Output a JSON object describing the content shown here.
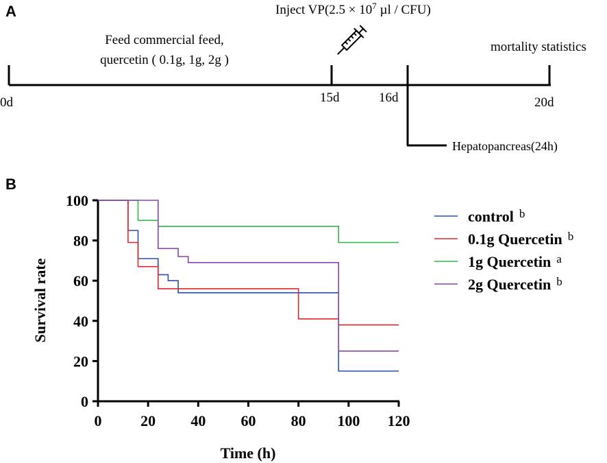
{
  "panel_a": {
    "label": "A",
    "inject_prefix": "Inject VP(2.5 × 10",
    "inject_exponent": "7",
    "inject_suffix": " µl / CFU)",
    "feed_line1": "Feed commercial feed,",
    "feed_line2": "quercetin ( 0.1g, 1g, 2g )",
    "mortality_label": "mortality statistics",
    "hepato_label": "Hepatopancreas(24h)",
    "ticks": [
      "0d",
      "15d",
      "16d",
      "20d"
    ],
    "syringe_icon": "syringe-icon"
  },
  "panel_b": {
    "label": "B"
  },
  "colors": {
    "control": "#2a4fb0",
    "q01": "#e3262a",
    "q1": "#34b44a",
    "q2": "#8a44b0",
    "axis": "#000000"
  },
  "chart_data": {
    "type": "line",
    "step": true,
    "title": "",
    "xlabel": "Time (h)",
    "ylabel": "Survival rate",
    "xlim": [
      0,
      120
    ],
    "ylim": [
      0,
      100
    ],
    "x_ticks": [
      0,
      20,
      40,
      60,
      80,
      100,
      120
    ],
    "y_ticks": [
      0,
      20,
      40,
      60,
      80,
      100
    ],
    "grid": false,
    "legend_position": "right",
    "series": [
      {
        "name": "control",
        "sig": "b",
        "color_key": "control",
        "points": [
          [
            0,
            100
          ],
          [
            12,
            100
          ],
          [
            12,
            85
          ],
          [
            16,
            85
          ],
          [
            16,
            71
          ],
          [
            24,
            71
          ],
          [
            24,
            63
          ],
          [
            28,
            63
          ],
          [
            28,
            60
          ],
          [
            32,
            60
          ],
          [
            32,
            54
          ],
          [
            96,
            54
          ],
          [
            96,
            15
          ],
          [
            120,
            15
          ]
        ]
      },
      {
        "name": "0.1g Quercetin",
        "sig": "b",
        "color_key": "q01",
        "points": [
          [
            0,
            100
          ],
          [
            12,
            100
          ],
          [
            12,
            79
          ],
          [
            16,
            79
          ],
          [
            16,
            67
          ],
          [
            24,
            67
          ],
          [
            24,
            56
          ],
          [
            80,
            56
          ],
          [
            80,
            41
          ],
          [
            96,
            41
          ],
          [
            96,
            38
          ],
          [
            120,
            38
          ]
        ]
      },
      {
        "name": "1g Quercetin",
        "sig": "a",
        "color_key": "q1",
        "points": [
          [
            0,
            100
          ],
          [
            16,
            100
          ],
          [
            16,
            90
          ],
          [
            24,
            90
          ],
          [
            24,
            87
          ],
          [
            96,
            87
          ],
          [
            96,
            79
          ],
          [
            120,
            79
          ]
        ]
      },
      {
        "name": "2g Quercetin",
        "sig": "b",
        "color_key": "q2",
        "points": [
          [
            0,
            100
          ],
          [
            24,
            100
          ],
          [
            24,
            76
          ],
          [
            32,
            76
          ],
          [
            32,
            72
          ],
          [
            36,
            72
          ],
          [
            36,
            69
          ],
          [
            96,
            69
          ],
          [
            96,
            25
          ],
          [
            120,
            25
          ]
        ]
      }
    ]
  }
}
